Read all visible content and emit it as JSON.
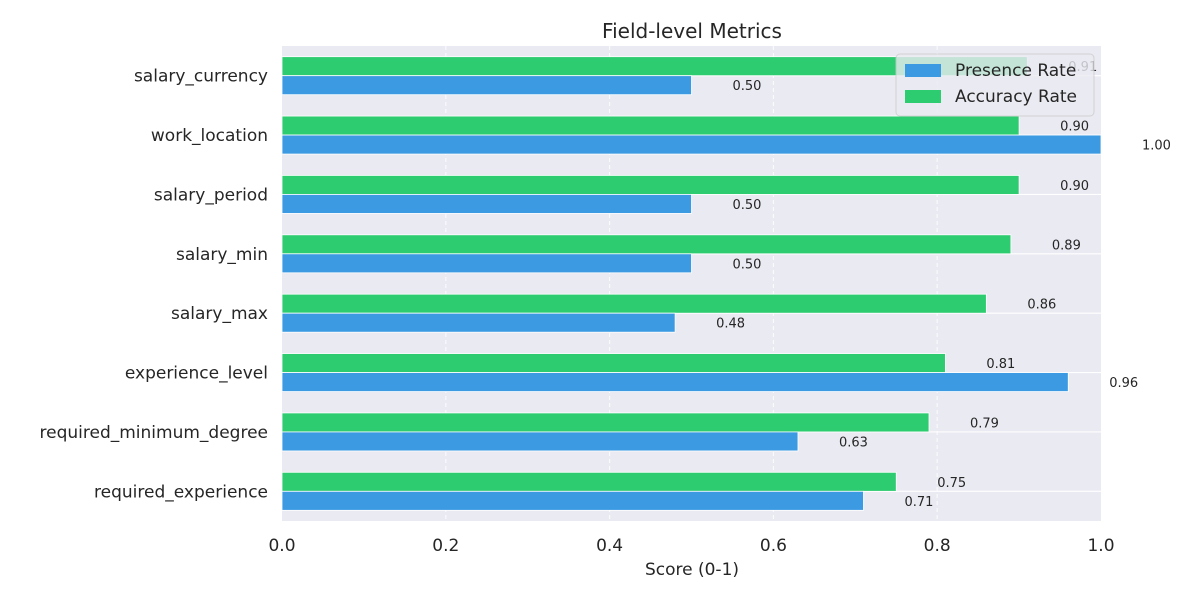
{
  "chart_data": {
    "type": "bar",
    "orientation": "horizontal",
    "title": "Field-level Metrics",
    "xlabel": "Score (0-1)",
    "ylabel": "",
    "xlim": [
      0,
      1.0
    ],
    "xticks": [
      "0.0",
      "0.2",
      "0.4",
      "0.6",
      "0.8",
      "1.0"
    ],
    "grid": true,
    "legend_position": "top-right",
    "categories": [
      "salary_currency",
      "work_location",
      "salary_period",
      "salary_min",
      "salary_max",
      "experience_level",
      "required_minimum_degree",
      "required_experience"
    ],
    "series": [
      {
        "name": "Presence Rate",
        "color": "#3b9ae1",
        "values": [
          0.5,
          1.0,
          0.5,
          0.5,
          0.48,
          0.96,
          0.63,
          0.71
        ],
        "labels": [
          "0.50",
          "1.00",
          "0.50",
          "0.50",
          "0.48",
          "0.96",
          "0.63",
          "0.71"
        ]
      },
      {
        "name": "Accuracy Rate",
        "color": "#2ecc71",
        "values": [
          0.91,
          0.9,
          0.9,
          0.89,
          0.86,
          0.81,
          0.79,
          0.75
        ],
        "labels": [
          "0.91",
          "0.90",
          "0.90",
          "0.89",
          "0.86",
          "0.81",
          "0.79",
          "0.75"
        ]
      }
    ],
    "background_color": "#eaeaf2"
  }
}
